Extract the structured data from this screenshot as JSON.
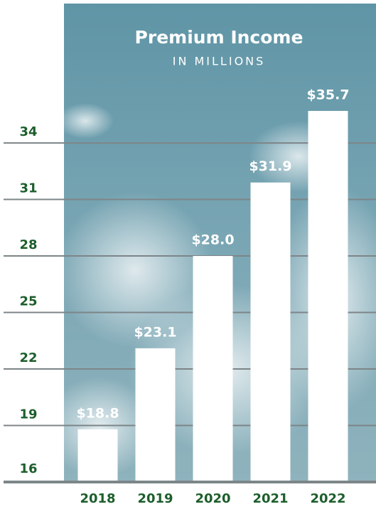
{
  "chart_data": {
    "type": "bar",
    "title": "Premium Income",
    "subtitle": "IN MILLIONS",
    "categories": [
      "2018",
      "2019",
      "2020",
      "2021",
      "2022"
    ],
    "values": [
      18.8,
      23.1,
      28.0,
      31.9,
      35.7
    ],
    "value_labels": [
      "$18.8",
      "$23.1",
      "$28.0",
      "$31.9",
      "$35.7"
    ],
    "color": "#ffffff",
    "ylim": [
      16,
      41.4
    ],
    "yticks": [
      16,
      19,
      22,
      25,
      28,
      31,
      34
    ],
    "grid": true
  }
}
